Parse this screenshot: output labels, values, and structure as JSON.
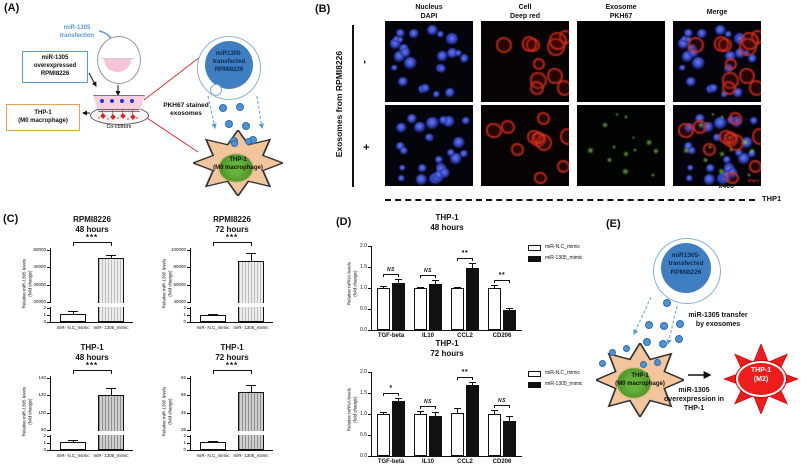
{
  "panels": {
    "a": {
      "label": "(A)",
      "transfection": "miR-1305\ntransfection",
      "box1": "miR-1305\noverexpressed\nRPMI8226",
      "box2": "THP-1\n(M0 macrophage)",
      "coculture": "Co-culture",
      "big_circle": "miR1305-\ntransfected\nRPMI8226",
      "exosome_text": "PKH67 stained\nexosomes",
      "star_text": "THP-1\n(M0 macrophage)"
    },
    "b": {
      "label": "(B)",
      "columns": [
        "Nucleus\nDAPI",
        "Cell\nDeep red",
        "Exosome\nPKH67",
        "Merge"
      ],
      "row_axis_label": "Exosomes from RPMI8226",
      "row_markers": [
        "-",
        "+"
      ],
      "magnification": "x400",
      "cell_label": "THP1",
      "scale_text": "20μm"
    },
    "c": {
      "label": "(C)"
    },
    "d": {
      "label": "(D)"
    },
    "e": {
      "label": "(E)",
      "circle_text": "miR1305-\ntransfected\nRPMI8226",
      "transfer_text": "miR-1305 transfer\nby exosomes",
      "star_text": "THP-1\n(M0 macrophage)",
      "burst_text": "THP-1\n(M2)",
      "overexpression_text": "miR-1305\noverexpression in\nTHP-1"
    }
  },
  "colors": {
    "accent_blue": "#5b9bd5",
    "cell_blue": "#3f7fc1",
    "exosome_dot": "#4f93d6",
    "macrophage_fill": "#f2c59c",
    "m2_red": "#ee1c1c",
    "orange_border": "#e8a04c",
    "red_connector": "#e0312e",
    "pkh67_green": "#55a82f",
    "dapi_blue": "#2c3cb4",
    "deep_red": "#da301c"
  },
  "chart_data": [
    {
      "id": "rpmi8226_48h",
      "type": "bar_broken_axis",
      "title": "RPMI8226\n48 hours",
      "ylabel": "Relative miR-1305 levels\n(fold change)",
      "categories": [
        "miR- N.C_mimic",
        "miR- 1305_mimic"
      ],
      "values": [
        1.2,
        45500
      ],
      "errors": [
        0.35,
        1800
      ],
      "upper_ticks": [
        20000,
        30000,
        40000,
        50000
      ],
      "lower_ticks": [
        0,
        1,
        2
      ],
      "lower_max": 2,
      "significance": "***",
      "hatch": "light"
    },
    {
      "id": "rpmi8226_72h",
      "type": "bar_broken_axis",
      "title": "RPMI8226\n72 hours",
      "ylabel": "Relative miR-1305 levels\n(fold change)",
      "categories": [
        "miR- N.C_mimic",
        "miR- 1305_mimic"
      ],
      "values": [
        1.0,
        87000
      ],
      "errors": [
        0.2,
        9000
      ],
      "upper_ticks": [
        40000,
        60000,
        80000,
        100000
      ],
      "lower_ticks": [
        0,
        1,
        2
      ],
      "lower_max": 2,
      "significance": "***",
      "hatch": "light"
    },
    {
      "id": "thp1_48h",
      "type": "bar_broken_axis",
      "title": "THP-1\n48 hours",
      "ylabel": "Relative miR-1305 levels\n(fold change)",
      "categories": [
        "miR- N.C_mimic",
        "miR- 1305_mimic"
      ],
      "values": [
        1.2,
        120
      ],
      "errors": [
        0.3,
        8
      ],
      "upper_ticks": [
        80,
        100,
        120,
        140
      ],
      "lower_ticks": [
        0,
        1,
        2
      ],
      "lower_max": 2,
      "significance": "***",
      "hatch": "dark"
    },
    {
      "id": "thp1_72h",
      "type": "bar_broken_axis",
      "title": "THP-1\n72 hours",
      "ylabel": "Relative miR-1305 levels\n(fold change)",
      "categories": [
        "miR- N.C_mimic",
        "miR- 1305_mimic"
      ],
      "values": [
        1.1,
        57
      ],
      "errors": [
        0.25,
        4
      ],
      "upper_ticks": [
        35,
        45,
        55,
        65
      ],
      "lower_ticks": [
        0,
        1,
        2
      ],
      "lower_max": 2,
      "significance": "***",
      "hatch": "dark"
    },
    {
      "id": "thp1_mrna_48h",
      "type": "grouped_bar",
      "title": "THP-1\n48 hours",
      "ylabel": "Relative mRNA levels\n(fold change)",
      "categories": [
        "TGF-beta",
        "IL10",
        "CCL2",
        "CD206"
      ],
      "ylim": [
        0,
        2
      ],
      "yticks": [
        0,
        0.5,
        1,
        1.5,
        2
      ],
      "series": [
        {
          "name": "miR-N.C_mimic",
          "values": [
            1.0,
            1.0,
            1.0,
            1.0
          ],
          "errors": [
            0.05,
            0.03,
            0.03,
            0.08
          ]
        },
        {
          "name": "miR-1305_mimic",
          "values": [
            1.12,
            1.1,
            1.48,
            0.48
          ],
          "errors": [
            0.09,
            0.08,
            0.12,
            0.04
          ]
        }
      ],
      "significance": [
        "NS",
        "NS",
        "**",
        "**"
      ]
    },
    {
      "id": "thp1_mrna_72h",
      "type": "grouped_bar",
      "title": "THP-1\n72 hours",
      "ylabel": "Relative mRNA levels\n(fold change)",
      "categories": [
        "TGF-beta",
        "IL10",
        "CCL2",
        "CD206"
      ],
      "ylim": [
        0,
        2
      ],
      "yticks": [
        0,
        0.5,
        1,
        1.5,
        2
      ],
      "series": [
        {
          "name": "miR-N.C_mimic",
          "values": [
            1.0,
            1.0,
            1.02,
            1.0
          ],
          "errors": [
            0.04,
            0.07,
            0.12,
            0.09
          ]
        },
        {
          "name": "miR-1305_mimic",
          "values": [
            1.32,
            0.95,
            1.7,
            0.84
          ],
          "errors": [
            0.06,
            0.09,
            0.07,
            0.11
          ]
        }
      ],
      "significance": [
        "*",
        "NS",
        "**",
        "NS"
      ]
    }
  ]
}
